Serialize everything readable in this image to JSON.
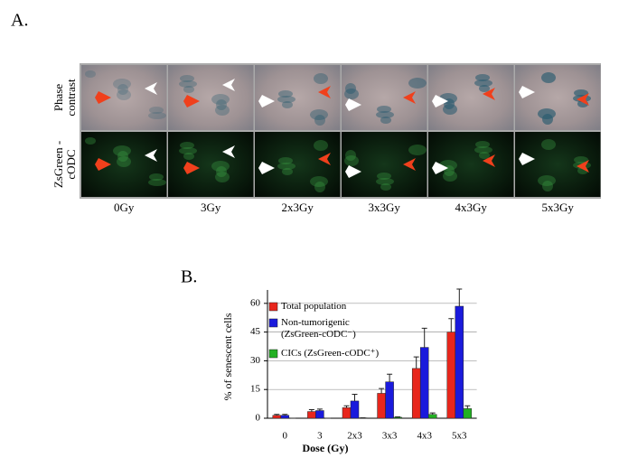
{
  "panel_label_a": "A.",
  "panel_a": {
    "row_labels": [
      "Phase contrast",
      "ZsGreen -cODC"
    ],
    "column_labels": [
      "0Gy",
      "3Gy",
      "2x3Gy",
      "3x3Gy",
      "4x3Gy",
      "5x3Gy"
    ]
  },
  "panel_label_b": "B.",
  "chart_data": {
    "type": "bar",
    "x_label": "Dose (Gy)",
    "y_label": "% of senescent cells",
    "categories": [
      "0",
      "3",
      "2x3",
      "3x3",
      "4x3",
      "5x3"
    ],
    "series": [
      {
        "name": "Total population",
        "color": "#e8261c",
        "values": [
          1.5,
          3.5,
          5.5,
          13,
          26,
          45
        ],
        "errors": [
          0.5,
          1,
          1,
          2.5,
          6,
          7
        ]
      },
      {
        "name": "Non-tumorigenic (ZsGreen-cODC⁻)",
        "color": "#1a1adc",
        "values": [
          1.5,
          4,
          9,
          19,
          37,
          58.5
        ],
        "errors": [
          0.5,
          0.8,
          3.5,
          4,
          10,
          9
        ]
      },
      {
        "name": "CICs (ZsGreen-cODC⁺)",
        "color": "#22b022",
        "values": [
          0,
          0,
          0.2,
          0.5,
          2,
          5
        ],
        "errors": [
          0,
          0,
          0,
          0.2,
          0.8,
          1.5
        ]
      }
    ],
    "ylim": [
      0,
      67
    ],
    "yticks": [
      0,
      15,
      30,
      45,
      60
    ],
    "grid": true,
    "legend": "upper left"
  }
}
